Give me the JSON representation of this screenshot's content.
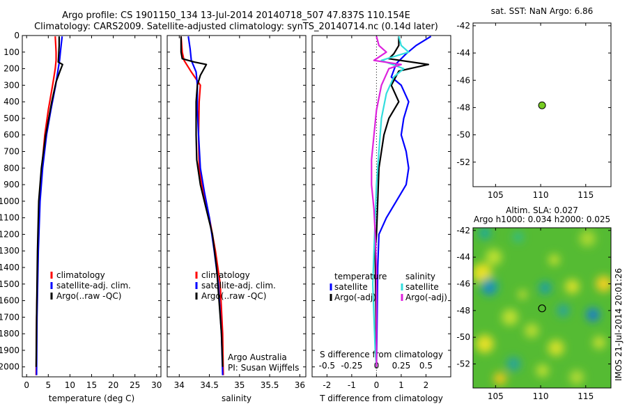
{
  "header": {
    "line1": "Argo profile: CS 1901150_134 13-Jul-2014 20140718_507 47.837S 110.154E",
    "line2": "Climatology: CARS2009. Satellite-adjusted climatology: synTS_20140714.nc (0.14d later)"
  },
  "side_stamp": "IMOS 21-Jul-2014 20:01:26",
  "chart_data": [
    {
      "id": "temperature",
      "type": "line",
      "xlabel": "temperature (deg C)",
      "xlim": [
        -1,
        31
      ],
      "xticks": [
        0,
        5,
        10,
        15,
        20,
        25,
        30
      ],
      "ylim": [
        2060,
        0
      ],
      "yticks": [
        0,
        100,
        200,
        300,
        400,
        500,
        600,
        700,
        800,
        900,
        1000,
        1100,
        1200,
        1300,
        1400,
        1500,
        1600,
        1700,
        1800,
        1900,
        2000
      ],
      "legend": [
        "climatology",
        "satellite-adj. clim.",
        "Argo(..raw -QC)"
      ],
      "series": [
        {
          "name": "climatology",
          "color": "#ff0000",
          "points": [
            [
              6.6,
              5
            ],
            [
              6.7,
              50
            ],
            [
              6.8,
              100
            ],
            [
              6.8,
              150
            ],
            [
              6.6,
              200
            ],
            [
              6.0,
              300
            ],
            [
              5.0,
              450
            ],
            [
              4.2,
              600
            ],
            [
              3.5,
              800
            ],
            [
              3.0,
              1000
            ],
            [
              2.6,
              1300
            ],
            [
              2.3,
              1700
            ],
            [
              2.2,
              2050
            ]
          ]
        },
        {
          "name": "satellite-adj. clim.",
          "color": "#0000ff",
          "points": [
            [
              8.2,
              5
            ],
            [
              8.0,
              50
            ],
            [
              7.8,
              100
            ],
            [
              7.6,
              150
            ],
            [
              7.3,
              200
            ],
            [
              6.7,
              300
            ],
            [
              5.6,
              450
            ],
            [
              4.6,
              600
            ],
            [
              3.7,
              800
            ],
            [
              3.1,
              1000
            ],
            [
              2.7,
              1300
            ],
            [
              2.4,
              1700
            ],
            [
              2.3,
              2050
            ]
          ]
        },
        {
          "name": "Argo(..raw -QC)",
          "color": "#000000",
          "points": [
            [
              7.5,
              5
            ],
            [
              7.5,
              60
            ],
            [
              7.4,
              120
            ],
            [
              7.3,
              160
            ],
            [
              8.3,
              175
            ],
            [
              7.7,
              215
            ],
            [
              6.8,
              280
            ],
            [
              5.8,
              400
            ],
            [
              4.4,
              600
            ],
            [
              3.4,
              800
            ],
            [
              2.8,
              1000
            ],
            [
              2.5,
              1300
            ],
            [
              2.3,
              1700
            ],
            [
              2.2,
              2000
            ]
          ]
        }
      ]
    },
    {
      "id": "salinity",
      "type": "line",
      "xlabel": "salinity",
      "xlim": [
        33.8,
        36.1
      ],
      "xticks": [
        34,
        34.5,
        35,
        35.5,
        36
      ],
      "ylim": [
        2060,
        0
      ],
      "legend": [
        "climatology",
        "satellite-adj. clim.",
        "Argo(..raw -QC)"
      ],
      "annotation": [
        "Argo Australia",
        "PI: Susan Wijffels"
      ],
      "series": [
        {
          "name": "climatology",
          "color": "#ff0000",
          "points": [
            [
              34.03,
              5
            ],
            [
              34.05,
              100
            ],
            [
              34.08,
              150
            ],
            [
              34.2,
              220
            ],
            [
              34.35,
              300
            ],
            [
              34.33,
              400
            ],
            [
              34.32,
              600
            ],
            [
              34.33,
              800
            ],
            [
              34.4,
              950
            ],
            [
              34.5,
              1100
            ],
            [
              34.6,
              1300
            ],
            [
              34.68,
              1500
            ],
            [
              34.72,
              1800
            ],
            [
              34.73,
              2050
            ]
          ]
        },
        {
          "name": "satellite-adj. clim.",
          "color": "#0000ff",
          "points": [
            [
              34.15,
              5
            ],
            [
              34.18,
              80
            ],
            [
              34.2,
              150
            ],
            [
              34.28,
              220
            ],
            [
              34.3,
              300
            ],
            [
              34.3,
              450
            ],
            [
              34.32,
              600
            ],
            [
              34.35,
              800
            ],
            [
              34.42,
              950
            ],
            [
              34.5,
              1100
            ],
            [
              34.58,
              1300
            ],
            [
              34.65,
              1500
            ],
            [
              34.7,
              1800
            ],
            [
              34.72,
              2050
            ]
          ]
        },
        {
          "name": "Argo(..raw -QC)",
          "color": "#000000",
          "points": [
            [
              34.03,
              5
            ],
            [
              34.03,
              100
            ],
            [
              34.05,
              140
            ],
            [
              34.25,
              160
            ],
            [
              34.45,
              175
            ],
            [
              34.35,
              240
            ],
            [
              34.3,
              300
            ],
            [
              34.28,
              400
            ],
            [
              34.28,
              600
            ],
            [
              34.29,
              750
            ],
            [
              34.31,
              800
            ],
            [
              34.35,
              900
            ],
            [
              34.45,
              1050
            ],
            [
              34.55,
              1200
            ],
            [
              34.62,
              1400
            ],
            [
              34.66,
              1600
            ],
            [
              34.7,
              1800
            ],
            [
              34.72,
              2000
            ]
          ]
        }
      ]
    },
    {
      "id": "difference",
      "type": "line",
      "xlabel": "T difference from climatology",
      "top_axis_label": "S difference from climatology",
      "xlim": [
        -2.6,
        3
      ],
      "xticks": [
        -2,
        -1,
        0,
        1,
        2
      ],
      "top_ticks": [
        -0.5,
        -0.25,
        0,
        0.25,
        0.5
      ],
      "ylim": [
        2060,
        0
      ],
      "legend_left": {
        "title": "temperature",
        "items": [
          "satellite",
          "Argo(-adj)"
        ]
      },
      "legend_right": {
        "title": "salinity",
        "items": [
          "satellite",
          "Argo(-adj)"
        ]
      },
      "series": [
        {
          "name": "temperature satellite",
          "color": "#0000ff",
          "points": [
            [
              2.2,
              5
            ],
            [
              1.6,
              60
            ],
            [
              1.2,
              110
            ],
            [
              0.8,
              170
            ],
            [
              0.6,
              250
            ],
            [
              1.0,
              300
            ],
            [
              1.3,
              400
            ],
            [
              1.1,
              500
            ],
            [
              1.0,
              600
            ],
            [
              1.2,
              700
            ],
            [
              1.3,
              800
            ],
            [
              1.2,
              900
            ],
            [
              0.8,
              1000
            ],
            [
              0.4,
              1100
            ],
            [
              0.1,
              1200
            ],
            [
              0.05,
              1400
            ],
            [
              0.0,
              2000
            ]
          ]
        },
        {
          "name": "temperature Argo(-adj)",
          "color": "#000000",
          "points": [
            [
              0.9,
              5
            ],
            [
              0.9,
              60
            ],
            [
              0.7,
              110
            ],
            [
              0.5,
              140
            ],
            [
              2.1,
              175
            ],
            [
              0.9,
              215
            ],
            [
              0.6,
              300
            ],
            [
              0.9,
              400
            ],
            [
              0.5,
              500
            ],
            [
              0.3,
              600
            ],
            [
              0.2,
              700
            ],
            [
              0.1,
              800
            ],
            [
              0.05,
              1000
            ],
            [
              0.0,
              1200
            ],
            [
              -0.05,
              1300
            ],
            [
              0.0,
              2000
            ]
          ]
        },
        {
          "name": "salinity satellite",
          "color": "#33dddd",
          "points": [
            [
              0.9,
              5
            ],
            [
              1.0,
              60
            ],
            [
              1.3,
              100
            ],
            [
              0.2,
              150
            ],
            [
              1.1,
              200
            ],
            [
              0.7,
              250
            ],
            [
              0.4,
              350
            ],
            [
              0.2,
              500
            ],
            [
              0.1,
              700
            ],
            [
              0.0,
              900
            ],
            [
              -0.05,
              1100
            ],
            [
              -0.1,
              1300
            ],
            [
              -0.15,
              1500
            ],
            [
              -0.1,
              1700
            ],
            [
              -0.05,
              1900
            ],
            [
              0.0,
              2000
            ]
          ]
        },
        {
          "name": "salinity Argo(-adj)",
          "color": "#dd22dd",
          "points": [
            [
              0.0,
              5
            ],
            [
              0.1,
              60
            ],
            [
              0.4,
              100
            ],
            [
              -0.1,
              150
            ],
            [
              1.0,
              175
            ],
            [
              0.5,
              200
            ],
            [
              0.2,
              300
            ],
            [
              0.0,
              450
            ],
            [
              -0.1,
              600
            ],
            [
              -0.2,
              750
            ],
            [
              -0.2,
              900
            ],
            [
              -0.1,
              1050
            ],
            [
              -0.05,
              1200
            ],
            [
              0.0,
              1400
            ],
            [
              0.0,
              2000
            ]
          ]
        }
      ]
    },
    {
      "id": "sst_map",
      "type": "scatter",
      "title": "sat. SST: NaN Argo: 6.86",
      "xlim": [
        102.5,
        117.8
      ],
      "ylim": [
        -53.8,
        -41.8
      ],
      "xticks": [
        105,
        110,
        115
      ],
      "yticks": [
        -42,
        -44,
        -46,
        -48,
        -50,
        -52
      ],
      "marker": {
        "x": 110.154,
        "y": -47.837,
        "color": "#77cc22"
      }
    },
    {
      "id": "sla_map",
      "type": "heatmap",
      "title_line1": "Altim. SLA: 0.027",
      "title_line2": "Argo h1000: 0.034 h2000: 0.025",
      "xlim": [
        102.5,
        117.8
      ],
      "ylim": [
        -53.8,
        -41.8
      ],
      "xticks": [
        105,
        110,
        115
      ],
      "yticks": [
        -42,
        -44,
        -46,
        -48,
        -50,
        -52
      ],
      "background_color": "#55bb33",
      "blobs": [
        {
          "x": 103.8,
          "y": -42.2,
          "r": 0.7,
          "color": "#22aa99"
        },
        {
          "x": 107.5,
          "y": -42.5,
          "r": 0.6,
          "color": "#33bb88"
        },
        {
          "x": 115.2,
          "y": -42.6,
          "r": 0.9,
          "color": "#a8d833"
        },
        {
          "x": 104.8,
          "y": -44.0,
          "r": 0.9,
          "color": "#bbe033"
        },
        {
          "x": 111.5,
          "y": -44.2,
          "r": 0.6,
          "color": "#c9e22e"
        },
        {
          "x": 103.5,
          "y": -45.2,
          "r": 1.1,
          "color": "#e8e022"
        },
        {
          "x": 104.3,
          "y": -46.2,
          "r": 1.0,
          "color": "#1fa3a0"
        },
        {
          "x": 104.3,
          "y": -46.4,
          "r": 0.45,
          "color": "#2277cc"
        },
        {
          "x": 110.5,
          "y": -46.3,
          "r": 0.7,
          "color": "#1f9fa5"
        },
        {
          "x": 113.5,
          "y": -46.2,
          "r": 0.8,
          "color": "#d8e02a"
        },
        {
          "x": 117.0,
          "y": -46.0,
          "r": 0.9,
          "color": "#f0d020"
        },
        {
          "x": 108.0,
          "y": -46.8,
          "r": 0.5,
          "color": "#c8e030"
        },
        {
          "x": 115.8,
          "y": -48.3,
          "r": 0.8,
          "color": "#1f8fb5"
        },
        {
          "x": 115.8,
          "y": -48.4,
          "r": 0.35,
          "color": "#2255dd"
        },
        {
          "x": 106.6,
          "y": -48.5,
          "r": 0.9,
          "color": "#c0e030"
        },
        {
          "x": 112.5,
          "y": -48.0,
          "r": 0.7,
          "color": "#2aa599"
        },
        {
          "x": 109.0,
          "y": -49.5,
          "r": 0.8,
          "color": "#b8dc33"
        },
        {
          "x": 103.8,
          "y": -50.5,
          "r": 1.0,
          "color": "#e4e025"
        },
        {
          "x": 111.7,
          "y": -50.8,
          "r": 0.9,
          "color": "#d2e02c"
        },
        {
          "x": 116.5,
          "y": -50.4,
          "r": 0.7,
          "color": "#c5df30"
        },
        {
          "x": 107.0,
          "y": -52.0,
          "r": 0.8,
          "color": "#2aa598"
        },
        {
          "x": 110.2,
          "y": -52.5,
          "r": 0.7,
          "color": "#bfe030"
        },
        {
          "x": 105.5,
          "y": -53.1,
          "r": 0.7,
          "color": "#f0c81f"
        },
        {
          "x": 114.0,
          "y": -53.0,
          "r": 0.8,
          "color": "#b0da35"
        }
      ],
      "marker": {
        "x": 110.154,
        "y": -47.837
      }
    }
  ]
}
